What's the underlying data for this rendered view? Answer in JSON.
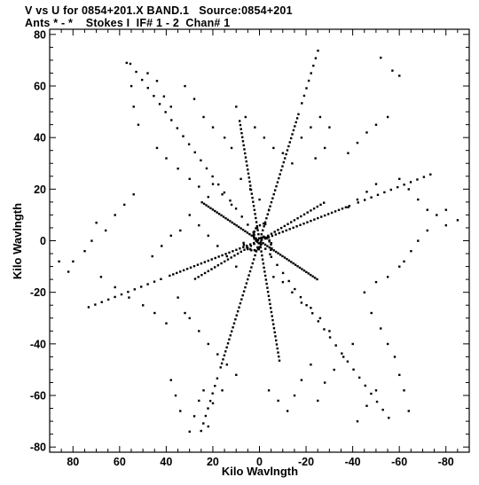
{
  "chart_data": {
    "type": "scatter",
    "title": "V vs U for 0854+201.X BAND.1   Source:0854+201",
    "subtitle": "Ants * - *    Stokes I  IF# 1 - 2  Chan# 1",
    "xlabel": "Kilo Wavlngth",
    "ylabel": "Kilo Wavlngth",
    "xlim": [
      90,
      -90
    ],
    "ylim": [
      -82,
      82
    ],
    "x_ticks": [
      80,
      60,
      40,
      20,
      0,
      -20,
      -40,
      -60,
      -80
    ],
    "y_ticks": [
      80,
      60,
      40,
      20,
      0,
      -20,
      -40,
      -60,
      -80
    ],
    "grid": false,
    "point_color": "#000000",
    "arms": [
      {
        "name": "arm-a",
        "dx": -0.33,
        "dy": 0.97,
        "mid": 52,
        "outer": 78,
        "outer_step": 3
      },
      {
        "name": "arm-b",
        "dx": -0.94,
        "dy": 0.33,
        "mid": 42,
        "outer": 80,
        "outer_step": 3
      },
      {
        "name": "arm-c",
        "dx": -0.63,
        "dy": -0.78,
        "mid": 0,
        "outer": 90,
        "outer_step": 4
      },
      {
        "name": "arm-d",
        "dx": 0.63,
        "dy": 0.78,
        "mid": 0,
        "outer": 90,
        "outer_step": 4
      },
      {
        "name": "arm-e",
        "dx": 0.94,
        "dy": -0.33,
        "mid": 42,
        "outer": 80,
        "outer_step": 3
      },
      {
        "name": "arm-f",
        "dx": 0.33,
        "dy": -0.97,
        "mid": 52,
        "outer": 78,
        "outer_step": 3
      },
      {
        "name": "arm-g",
        "dx": 0.58,
        "dy": 0.35,
        "mid": 44,
        "outer": 0,
        "outer_step": 3
      },
      {
        "name": "arm-h",
        "dx": -0.58,
        "dy": -0.35,
        "mid": 44,
        "outer": 0,
        "outer_step": 3
      },
      {
        "name": "arm-i",
        "dx": 0.18,
        "dy": 0.98,
        "mid": 48,
        "outer": 0,
        "outer_step": 3
      },
      {
        "name": "arm-j",
        "dx": -0.18,
        "dy": -0.98,
        "mid": 48,
        "outer": 0,
        "outer_step": 3
      },
      {
        "name": "arm-k",
        "dx": -0.88,
        "dy": 0.47,
        "mid": 32,
        "outer": 0,
        "outer_step": 3
      },
      {
        "name": "arm-l",
        "dx": 0.88,
        "dy": -0.47,
        "mid": 32,
        "outer": 0,
        "outer_step": 3
      }
    ],
    "points": [
      [
        57,
        69
      ],
      [
        55,
        60
      ],
      [
        54,
        52
      ],
      [
        52,
        45
      ],
      [
        48,
        65
      ],
      [
        44,
        62
      ],
      [
        41,
        56
      ],
      [
        38,
        52
      ],
      [
        32,
        60
      ],
      [
        28,
        55
      ],
      [
        24,
        48
      ],
      [
        20,
        44
      ],
      [
        15,
        40
      ],
      [
        12,
        36
      ],
      [
        44,
        36
      ],
      [
        40,
        32
      ],
      [
        35,
        28
      ],
      [
        30,
        24
      ],
      [
        26,
        21
      ],
      [
        22,
        17
      ],
      [
        62,
        10
      ],
      [
        58,
        14
      ],
      [
        54,
        18
      ],
      [
        70,
        7
      ],
      [
        66,
        4
      ],
      [
        72,
        0
      ],
      [
        75,
        -4
      ],
      [
        80,
        -8
      ],
      [
        82,
        -12
      ],
      [
        86,
        -8
      ],
      [
        68,
        -14
      ],
      [
        62,
        -18
      ],
      [
        56,
        -22
      ],
      [
        50,
        -25
      ],
      [
        45,
        -28
      ],
      [
        40,
        -32
      ],
      [
        35,
        -22
      ],
      [
        32,
        -28
      ],
      [
        30,
        -30
      ],
      [
        26,
        -35
      ],
      [
        22,
        -40
      ],
      [
        18,
        -44
      ],
      [
        14,
        -48
      ],
      [
        10,
        -52
      ],
      [
        24,
        -58
      ],
      [
        26,
        -62
      ],
      [
        28,
        -68
      ],
      [
        30,
        -74
      ],
      [
        34,
        -66
      ],
      [
        36,
        -60
      ],
      [
        38,
        -54
      ],
      [
        20,
        -63
      ],
      [
        22,
        -72
      ],
      [
        16,
        -58
      ],
      [
        -52,
        71
      ],
      [
        -57,
        66
      ],
      [
        -60,
        64
      ],
      [
        -55,
        48
      ],
      [
        -50,
        45
      ],
      [
        -46,
        42
      ],
      [
        -42,
        38
      ],
      [
        -38,
        34
      ],
      [
        -50,
        22
      ],
      [
        -46,
        19
      ],
      [
        -42,
        16
      ],
      [
        -38,
        13
      ],
      [
        -60,
        24
      ],
      [
        -64,
        20
      ],
      [
        -68,
        16
      ],
      [
        -72,
        12
      ],
      [
        -76,
        10
      ],
      [
        -80,
        6
      ],
      [
        -85,
        8
      ],
      [
        -80,
        12
      ],
      [
        -72,
        4
      ],
      [
        -68,
        0
      ],
      [
        -65,
        -4
      ],
      [
        -62,
        -8
      ],
      [
        -60,
        -10
      ],
      [
        -55,
        -14
      ],
      [
        -50,
        -16
      ],
      [
        -45,
        -20
      ],
      [
        -48,
        -28
      ],
      [
        -52,
        -34
      ],
      [
        -55,
        -40
      ],
      [
        -58,
        -45
      ],
      [
        -60,
        -52
      ],
      [
        -62,
        -58
      ],
      [
        -64,
        -66
      ],
      [
        -50,
        -58
      ],
      [
        -46,
        -64
      ],
      [
        -42,
        -70
      ],
      [
        -40,
        -40
      ],
      [
        -36,
        -45
      ],
      [
        -32,
        -50
      ],
      [
        -28,
        -55
      ],
      [
        -25,
        -62
      ],
      [
        -22,
        -48
      ],
      [
        -18,
        -54
      ],
      [
        -15,
        -60
      ],
      [
        -12,
        -66
      ],
      [
        -8,
        -62
      ],
      [
        -4,
        -58
      ],
      [
        -30,
        -35
      ],
      [
        -26,
        -30
      ],
      [
        -22,
        -26
      ],
      [
        -18,
        -24
      ],
      [
        -14,
        -20
      ],
      [
        -10,
        -16
      ],
      [
        -6,
        -14
      ],
      [
        10,
        52
      ],
      [
        6,
        48
      ],
      [
        2,
        44
      ],
      [
        -2,
        40
      ],
      [
        -6,
        36
      ],
      [
        -10,
        34
      ],
      [
        -14,
        30
      ],
      [
        -18,
        40
      ],
      [
        -22,
        44
      ],
      [
        -26,
        48
      ],
      [
        -30,
        44
      ],
      [
        -28,
        36
      ],
      [
        -24,
        32
      ],
      [
        8,
        24
      ],
      [
        4,
        20
      ],
      [
        0,
        16
      ],
      [
        -4,
        12
      ],
      [
        30,
        10
      ],
      [
        26,
        6
      ],
      [
        22,
        2
      ],
      [
        18,
        -2
      ],
      [
        14,
        -6
      ],
      [
        10,
        -10
      ],
      [
        34,
        4
      ],
      [
        38,
        2
      ],
      [
        42,
        -2
      ],
      [
        46,
        -6
      ],
      [
        12,
        14
      ],
      [
        16,
        18
      ],
      [
        20,
        22
      ]
    ]
  }
}
